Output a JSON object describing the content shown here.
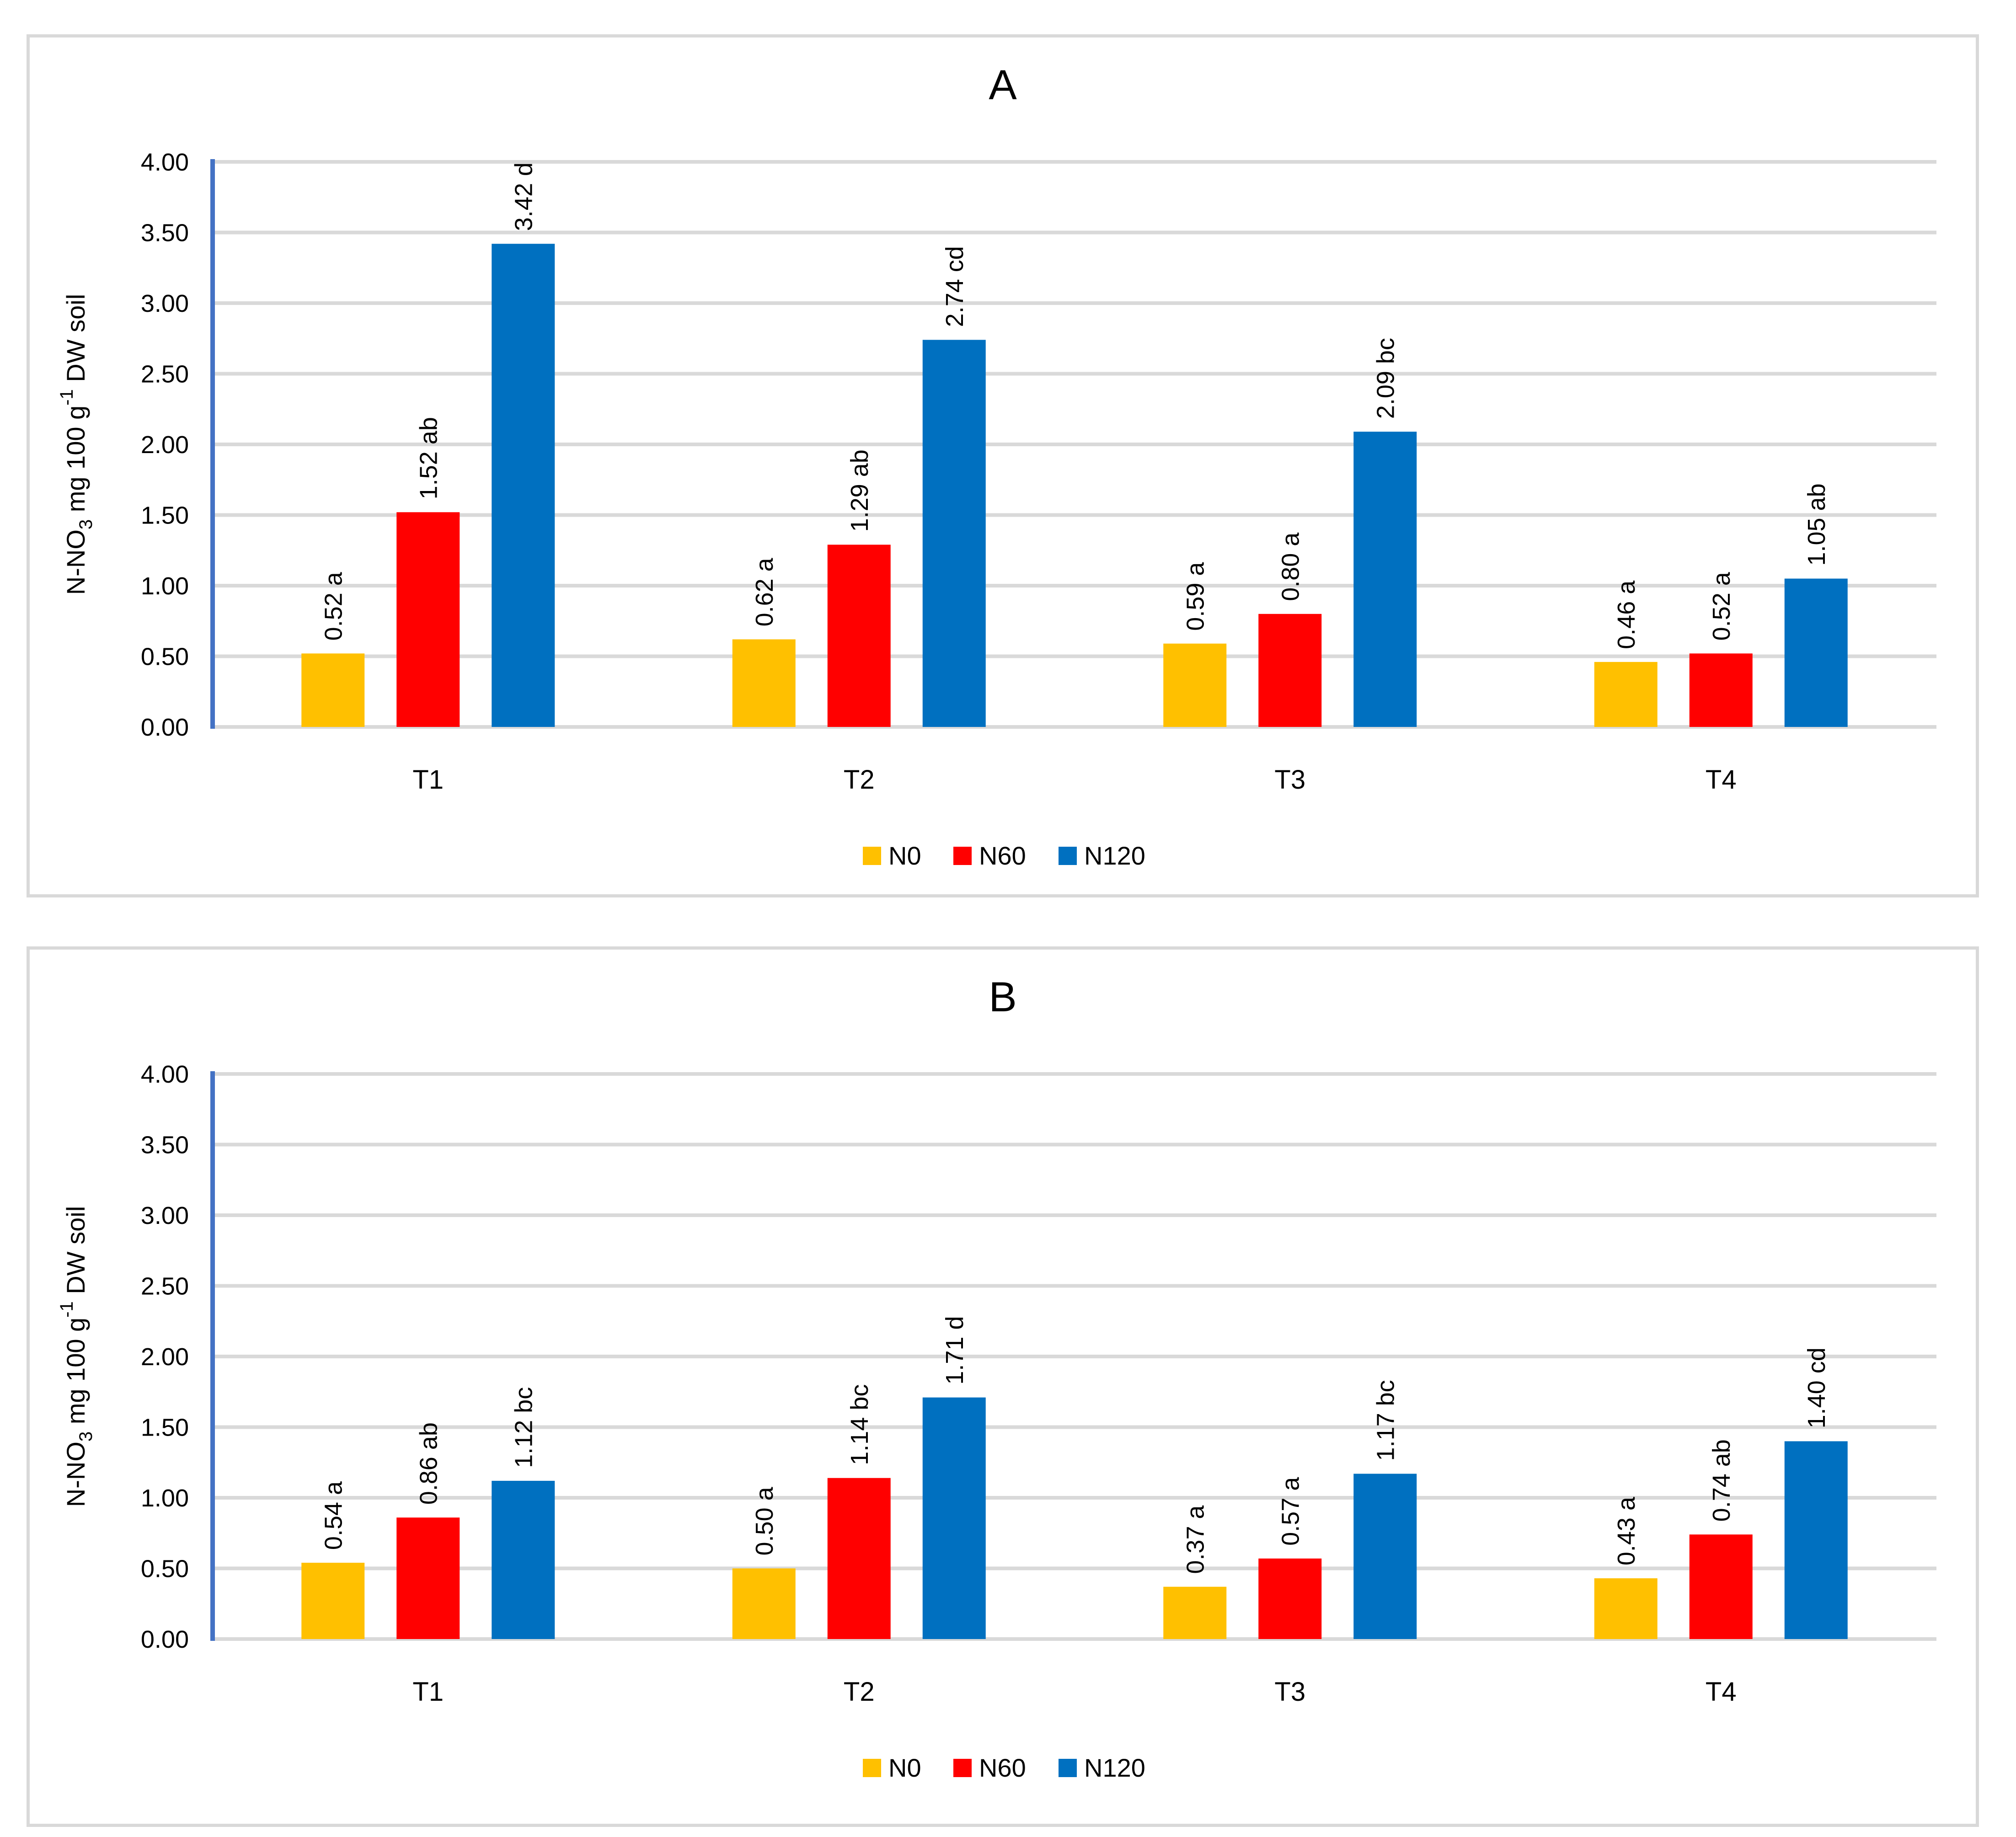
{
  "style": {
    "background": "#FFFFFF",
    "panel_border_color": "#D9D9D9",
    "grid_color": "#D9D9D9",
    "axis_line_color": "#4472C4",
    "text_color": "#000000",
    "series_colors": {
      "N0": "#FFC000",
      "N60": "#FF0000",
      "N120": "#0070C0"
    }
  },
  "chart_data": [
    {
      "type": "bar",
      "title": "A",
      "ylabel": "N-NO3 mg 100 g-1 DW soil",
      "ylabel_segments": [
        {
          "text": "N-NO"
        },
        {
          "text": "3",
          "style": "sub"
        },
        {
          "text": " mg 100 g"
        },
        {
          "text": "-1",
          "style": "sup"
        },
        {
          "text": " DW soil"
        }
      ],
      "ylim": [
        0,
        4
      ],
      "ytick_step": 0.5,
      "ytick_labels": [
        "0.00",
        "0.50",
        "1.00",
        "1.50",
        "2.00",
        "2.50",
        "3.00",
        "3.50",
        "4.00"
      ],
      "grid": true,
      "legend_position": "bottom",
      "categories": [
        "T1",
        "T2",
        "T3",
        "T4"
      ],
      "series": [
        {
          "name": "N0",
          "color": "#FFC000",
          "values": [
            0.52,
            0.62,
            0.59,
            0.46
          ],
          "labels": [
            "0.52 a",
            "0.62 a",
            "0.59 a",
            "0.46 a"
          ]
        },
        {
          "name": "N60",
          "color": "#FF0000",
          "values": [
            1.52,
            1.29,
            0.8,
            0.52
          ],
          "labels": [
            "1.52 ab",
            "1.29 ab",
            "0.80 a",
            "0.52 a"
          ]
        },
        {
          "name": "N120",
          "color": "#0070C0",
          "values": [
            3.42,
            2.74,
            2.09,
            1.05
          ],
          "labels": [
            "3.42 d",
            "2.74 cd",
            "2.09 bc",
            "1.05 ab"
          ]
        }
      ]
    },
    {
      "type": "bar",
      "title": "B",
      "ylabel": "N-NO3 mg 100 g-1 DW soil",
      "ylabel_segments": [
        {
          "text": "N-NO"
        },
        {
          "text": "3",
          "style": "sub"
        },
        {
          "text": " mg 100 g"
        },
        {
          "text": "-1",
          "style": "sup"
        },
        {
          "text": " DW soil"
        }
      ],
      "ylim": [
        0,
        4
      ],
      "ytick_step": 0.5,
      "ytick_labels": [
        "0.00",
        "0.50",
        "1.00",
        "1.50",
        "2.00",
        "2.50",
        "3.00",
        "3.50",
        "4.00"
      ],
      "grid": true,
      "legend_position": "bottom",
      "categories": [
        "T1",
        "T2",
        "T3",
        "T4"
      ],
      "series": [
        {
          "name": "N0",
          "color": "#FFC000",
          "values": [
            0.54,
            0.5,
            0.37,
            0.43
          ],
          "labels": [
            "0.54 a",
            "0.50 a",
            "0.37 a",
            "0.43 a"
          ]
        },
        {
          "name": "N60",
          "color": "#FF0000",
          "values": [
            0.86,
            1.14,
            0.57,
            0.74
          ],
          "labels": [
            "0.86 ab",
            "1.14 bc",
            "0.57 a",
            "0.74 ab"
          ]
        },
        {
          "name": "N120",
          "color": "#0070C0",
          "values": [
            1.12,
            1.71,
            1.17,
            1.4
          ],
          "labels": [
            "1.12 bc",
            "1.71 d",
            "1.17 bc",
            "1.40 cd"
          ]
        }
      ]
    }
  ]
}
